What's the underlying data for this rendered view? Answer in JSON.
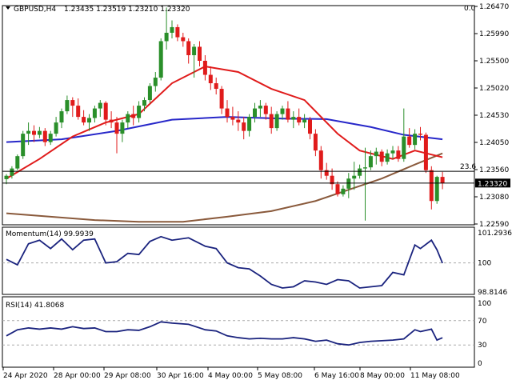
{
  "header": {
    "symbol": "GBPUSD,H4",
    "ohlc": "1.23435 1.23519 1.23210 1.23320",
    "corner_value": "0.0"
  },
  "fib_label": "23.6",
  "current_price_label": "1.23320",
  "momentum": {
    "label": "Momentum(14) 99.9939",
    "ticks": [
      "101.2936",
      "100",
      "98.8146"
    ],
    "range": [
      98.8146,
      101.2936
    ]
  },
  "rsi": {
    "label": "RSI(14) 41.8068",
    "ticks": [
      "100",
      "70",
      "30",
      "0"
    ],
    "range": [
      0,
      100
    ],
    "levels": [
      70,
      30
    ]
  },
  "time_labels": [
    "24 Apr 2020",
    "28 Apr 00:00",
    "29 Apr 08:00",
    "30 Apr 16:00",
    "4 May 00:00",
    "5 May 08:00",
    "6 May 16:00",
    "8 May 00:00",
    "11 May 08:00"
  ],
  "colors": {
    "bull": "#2a8f2a",
    "bear": "#e01b1b",
    "sma_fast": "#e01b1b",
    "sma_mid": "#2727c9",
    "sma_slow": "#8a5a3c",
    "indicator": "#1a237e"
  },
  "chart_data": {
    "type": "candlestick",
    "price_ticks": [
      "1.26470",
      "1.25990",
      "1.25500",
      "1.25020",
      "1.24530",
      "1.24050",
      "1.23560",
      "1.23080",
      "1.22590"
    ],
    "price_range": [
      1.2259,
      1.2647
    ],
    "fib_level": 1.2353,
    "current_price": 1.2332,
    "candles": [
      [
        1.2339,
        1.2348,
        1.233,
        1.2345
      ],
      [
        1.2345,
        1.2362,
        1.234,
        1.2358
      ],
      [
        1.2358,
        1.2383,
        1.2355,
        1.238
      ],
      [
        1.238,
        1.2425,
        1.2375,
        1.242
      ],
      [
        1.242,
        1.244,
        1.24,
        1.2425
      ],
      [
        1.2425,
        1.2435,
        1.2405,
        1.2418
      ],
      [
        1.2418,
        1.2432,
        1.2412,
        1.2425
      ],
      [
        1.2425,
        1.243,
        1.2398,
        1.2405
      ],
      [
        1.2405,
        1.2425,
        1.24,
        1.242
      ],
      [
        1.242,
        1.245,
        1.2415,
        1.244
      ],
      [
        1.244,
        1.2465,
        1.243,
        1.246
      ],
      [
        1.246,
        1.2488,
        1.2455,
        1.248
      ],
      [
        1.248,
        1.2485,
        1.245,
        1.247
      ],
      [
        1.247,
        1.2483,
        1.2445,
        1.245
      ],
      [
        1.245,
        1.2462,
        1.2435,
        1.244
      ],
      [
        1.244,
        1.2455,
        1.2425,
        1.2448
      ],
      [
        1.2448,
        1.247,
        1.244,
        1.2465
      ],
      [
        1.2465,
        1.248,
        1.245,
        1.2475
      ],
      [
        1.2475,
        1.2478,
        1.2435,
        1.2445
      ],
      [
        1.2445,
        1.246,
        1.243,
        1.244
      ],
      [
        1.244,
        1.245,
        1.2385,
        1.242
      ],
      [
        1.242,
        1.2445,
        1.2405,
        1.244
      ],
      [
        1.244,
        1.246,
        1.243,
        1.2455
      ],
      [
        1.2455,
        1.247,
        1.2435,
        1.2448
      ],
      [
        1.2448,
        1.2478,
        1.244,
        1.247
      ],
      [
        1.247,
        1.2485,
        1.246,
        1.248
      ],
      [
        1.248,
        1.251,
        1.2475,
        1.2505
      ],
      [
        1.2505,
        1.253,
        1.2495,
        1.252
      ],
      [
        1.252,
        1.259,
        1.2515,
        1.2585
      ],
      [
        1.2585,
        1.2645,
        1.257,
        1.26
      ],
      [
        1.26,
        1.2622,
        1.259,
        1.261
      ],
      [
        1.261,
        1.2615,
        1.2585,
        1.2592
      ],
      [
        1.2592,
        1.26,
        1.2575,
        1.2585
      ],
      [
        1.2585,
        1.259,
        1.2545,
        1.256
      ],
      [
        1.256,
        1.258,
        1.252,
        1.2575
      ],
      [
        1.2575,
        1.2585,
        1.254,
        1.255
      ],
      [
        1.255,
        1.256,
        1.2515,
        1.2525
      ],
      [
        1.2525,
        1.254,
        1.2498,
        1.251
      ],
      [
        1.251,
        1.252,
        1.249,
        1.25
      ],
      [
        1.25,
        1.2505,
        1.2455,
        1.2465
      ],
      [
        1.2465,
        1.248,
        1.244,
        1.245
      ],
      [
        1.245,
        1.2468,
        1.2435,
        1.2445
      ],
      [
        1.2445,
        1.246,
        1.2425,
        1.244
      ],
      [
        1.244,
        1.245,
        1.241,
        1.2425
      ],
      [
        1.2425,
        1.2455,
        1.2415,
        1.245
      ],
      [
        1.245,
        1.2475,
        1.244,
        1.2465
      ],
      [
        1.2465,
        1.248,
        1.245,
        1.247
      ],
      [
        1.247,
        1.2475,
        1.2445,
        1.2455
      ],
      [
        1.2455,
        1.2468,
        1.242,
        1.243
      ],
      [
        1.243,
        1.246,
        1.2425,
        1.2455
      ],
      [
        1.2455,
        1.247,
        1.2445,
        1.2465
      ],
      [
        1.2465,
        1.2478,
        1.244,
        1.2445
      ],
      [
        1.2445,
        1.246,
        1.243,
        1.245
      ],
      [
        1.245,
        1.2465,
        1.2435,
        1.244
      ],
      [
        1.244,
        1.2455,
        1.243,
        1.2445
      ],
      [
        1.2445,
        1.245,
        1.241,
        1.242
      ],
      [
        1.242,
        1.2428,
        1.238,
        1.239
      ],
      [
        1.239,
        1.2398,
        1.234,
        1.2355
      ],
      [
        1.2355,
        1.2368,
        1.2338,
        1.2345
      ],
      [
        1.2345,
        1.2358,
        1.232,
        1.233
      ],
      [
        1.233,
        1.2335,
        1.2308,
        1.2312
      ],
      [
        1.2312,
        1.2328,
        1.2308,
        1.2322
      ],
      [
        1.2322,
        1.235,
        1.2305,
        1.234
      ],
      [
        1.234,
        1.237,
        1.232,
        1.2345
      ],
      [
        1.2345,
        1.2365,
        1.234,
        1.2358
      ],
      [
        1.2358,
        1.2395,
        1.2265,
        1.236
      ],
      [
        1.236,
        1.239,
        1.2355,
        1.238
      ],
      [
        1.238,
        1.2395,
        1.2365,
        1.2388
      ],
      [
        1.2388,
        1.2392,
        1.2362,
        1.237
      ],
      [
        1.237,
        1.2392,
        1.2365,
        1.2385
      ],
      [
        1.2385,
        1.2398,
        1.2375,
        1.239
      ],
      [
        1.239,
        1.2398,
        1.237,
        1.2375
      ],
      [
        1.2375,
        1.2465,
        1.237,
        1.2415
      ],
      [
        1.2415,
        1.243,
        1.2395,
        1.24
      ],
      [
        1.24,
        1.2428,
        1.2392,
        1.242
      ],
      [
        1.242,
        1.2432,
        1.2408,
        1.2418
      ],
      [
        1.2418,
        1.2422,
        1.235,
        1.2355
      ],
      [
        1.2355,
        1.2362,
        1.2285,
        1.23
      ],
      [
        1.23,
        1.2345,
        1.2295,
        1.2343
      ],
      [
        1.2343,
        1.2352,
        1.2321,
        1.2332
      ]
    ],
    "ma_fast": [
      [
        0,
        1.234
      ],
      [
        6,
        1.2375
      ],
      [
        12,
        1.2415
      ],
      [
        18,
        1.244
      ],
      [
        24,
        1.2455
      ],
      [
        30,
        1.251
      ],
      [
        36,
        1.254
      ],
      [
        42,
        1.253
      ],
      [
        48,
        1.25
      ],
      [
        54,
        1.248
      ],
      [
        60,
        1.242
      ],
      [
        64,
        1.239
      ],
      [
        70,
        1.2375
      ],
      [
        74,
        1.239
      ],
      [
        79,
        1.2378
      ]
    ],
    "ma_mid": [
      [
        0,
        1.2405
      ],
      [
        10,
        1.241
      ],
      [
        20,
        1.2425
      ],
      [
        30,
        1.2445
      ],
      [
        40,
        1.245
      ],
      [
        50,
        1.2447
      ],
      [
        58,
        1.2446
      ],
      [
        66,
        1.2432
      ],
      [
        72,
        1.2418
      ],
      [
        79,
        1.241
      ]
    ],
    "ma_slow": [
      [
        0,
        1.2278
      ],
      [
        8,
        1.2272
      ],
      [
        16,
        1.2266
      ],
      [
        24,
        1.2263
      ],
      [
        32,
        1.2263
      ],
      [
        40,
        1.2272
      ],
      [
        48,
        1.2282
      ],
      [
        56,
        1.23
      ],
      [
        62,
        1.232
      ],
      [
        68,
        1.234
      ],
      [
        74,
        1.2365
      ],
      [
        79,
        1.2385
      ]
    ],
    "momentum": [
      [
        0,
        100.15
      ],
      [
        2,
        99.92
      ],
      [
        4,
        100.8
      ],
      [
        6,
        100.95
      ],
      [
        8,
        100.6
      ],
      [
        10,
        101.0
      ],
      [
        12,
        100.55
      ],
      [
        14,
        100.95
      ],
      [
        16,
        101.0
      ],
      [
        18,
        100.0
      ],
      [
        20,
        100.05
      ],
      [
        22,
        100.4
      ],
      [
        24,
        100.35
      ],
      [
        26,
        100.9
      ],
      [
        28,
        101.1
      ],
      [
        30,
        100.95
      ],
      [
        33,
        101.05
      ],
      [
        36,
        100.7
      ],
      [
        38,
        100.6
      ],
      [
        40,
        100.0
      ],
      [
        42,
        99.8
      ],
      [
        44,
        99.75
      ],
      [
        46,
        99.45
      ],
      [
        48,
        99.1
      ],
      [
        50,
        98.95
      ],
      [
        52,
        99.0
      ],
      [
        54,
        99.25
      ],
      [
        56,
        99.2
      ],
      [
        58,
        99.1
      ],
      [
        60,
        99.3
      ],
      [
        62,
        99.25
      ],
      [
        64,
        98.95
      ],
      [
        66,
        99.0
      ],
      [
        68,
        99.05
      ],
      [
        70,
        99.6
      ],
      [
        72,
        99.5
      ],
      [
        74,
        100.75
      ],
      [
        75,
        100.6
      ],
      [
        77,
        100.95
      ],
      [
        78,
        100.55
      ],
      [
        79,
        99.99
      ]
    ],
    "rsi_values": [
      [
        0,
        45
      ],
      [
        2,
        55
      ],
      [
        4,
        58
      ],
      [
        6,
        56
      ],
      [
        8,
        58
      ],
      [
        10,
        56
      ],
      [
        12,
        60
      ],
      [
        14,
        57
      ],
      [
        16,
        58
      ],
      [
        18,
        52
      ],
      [
        20,
        52
      ],
      [
        22,
        55
      ],
      [
        24,
        54
      ],
      [
        26,
        60
      ],
      [
        28,
        68
      ],
      [
        30,
        66
      ],
      [
        33,
        64
      ],
      [
        36,
        55
      ],
      [
        38,
        53
      ],
      [
        40,
        45
      ],
      [
        42,
        42
      ],
      [
        44,
        40
      ],
      [
        46,
        41
      ],
      [
        48,
        40
      ],
      [
        50,
        40
      ],
      [
        52,
        42
      ],
      [
        54,
        40
      ],
      [
        56,
        36
      ],
      [
        58,
        38
      ],
      [
        60,
        32
      ],
      [
        62,
        30
      ],
      [
        64,
        34
      ],
      [
        66,
        36
      ],
      [
        68,
        37
      ],
      [
        70,
        38
      ],
      [
        72,
        40
      ],
      [
        74,
        55
      ],
      [
        75,
        52
      ],
      [
        77,
        56
      ],
      [
        78,
        38
      ],
      [
        79,
        41.8
      ]
    ]
  }
}
